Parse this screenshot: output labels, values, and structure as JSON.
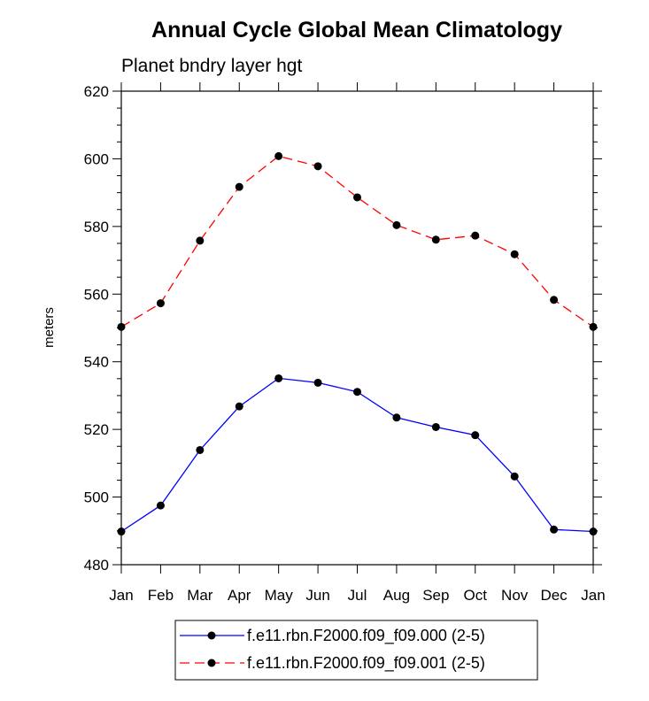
{
  "chart_data": {
    "type": "line",
    "title": "Annual Cycle Global Mean Climatology",
    "subtitle": "Planet bndry layer hgt",
    "xlabel": "",
    "ylabel": "meters",
    "categories": [
      "Jan",
      "Feb",
      "Mar",
      "Apr",
      "May",
      "Jun",
      "Jul",
      "Aug",
      "Sep",
      "Oct",
      "Nov",
      "Dec",
      "Jan"
    ],
    "ylim": [
      480,
      620
    ],
    "yticks": [
      480,
      500,
      520,
      540,
      560,
      580,
      600,
      620
    ],
    "grid": false,
    "legend_position": "bottom",
    "series": [
      {
        "name": "f.e11.rbn.F2000.f09_f09.000 (2-5)",
        "color": "#0000ff",
        "dash": "solid",
        "marker": "filled-circle",
        "values": [
          489.8,
          497.5,
          513.9,
          526.8,
          535.1,
          533.8,
          531.1,
          523.5,
          520.7,
          518.3,
          506.1,
          490.4,
          489.8
        ]
      },
      {
        "name": "f.e11.rbn.F2000.f09_f09.001 (2-5)",
        "color": "#ff0000",
        "dash": "dashed",
        "marker": "filled-circle",
        "values": [
          550.3,
          557.3,
          575.8,
          591.7,
          600.8,
          597.8,
          588.6,
          580.4,
          576.1,
          577.3,
          571.8,
          558.3,
          550.3
        ]
      }
    ]
  }
}
